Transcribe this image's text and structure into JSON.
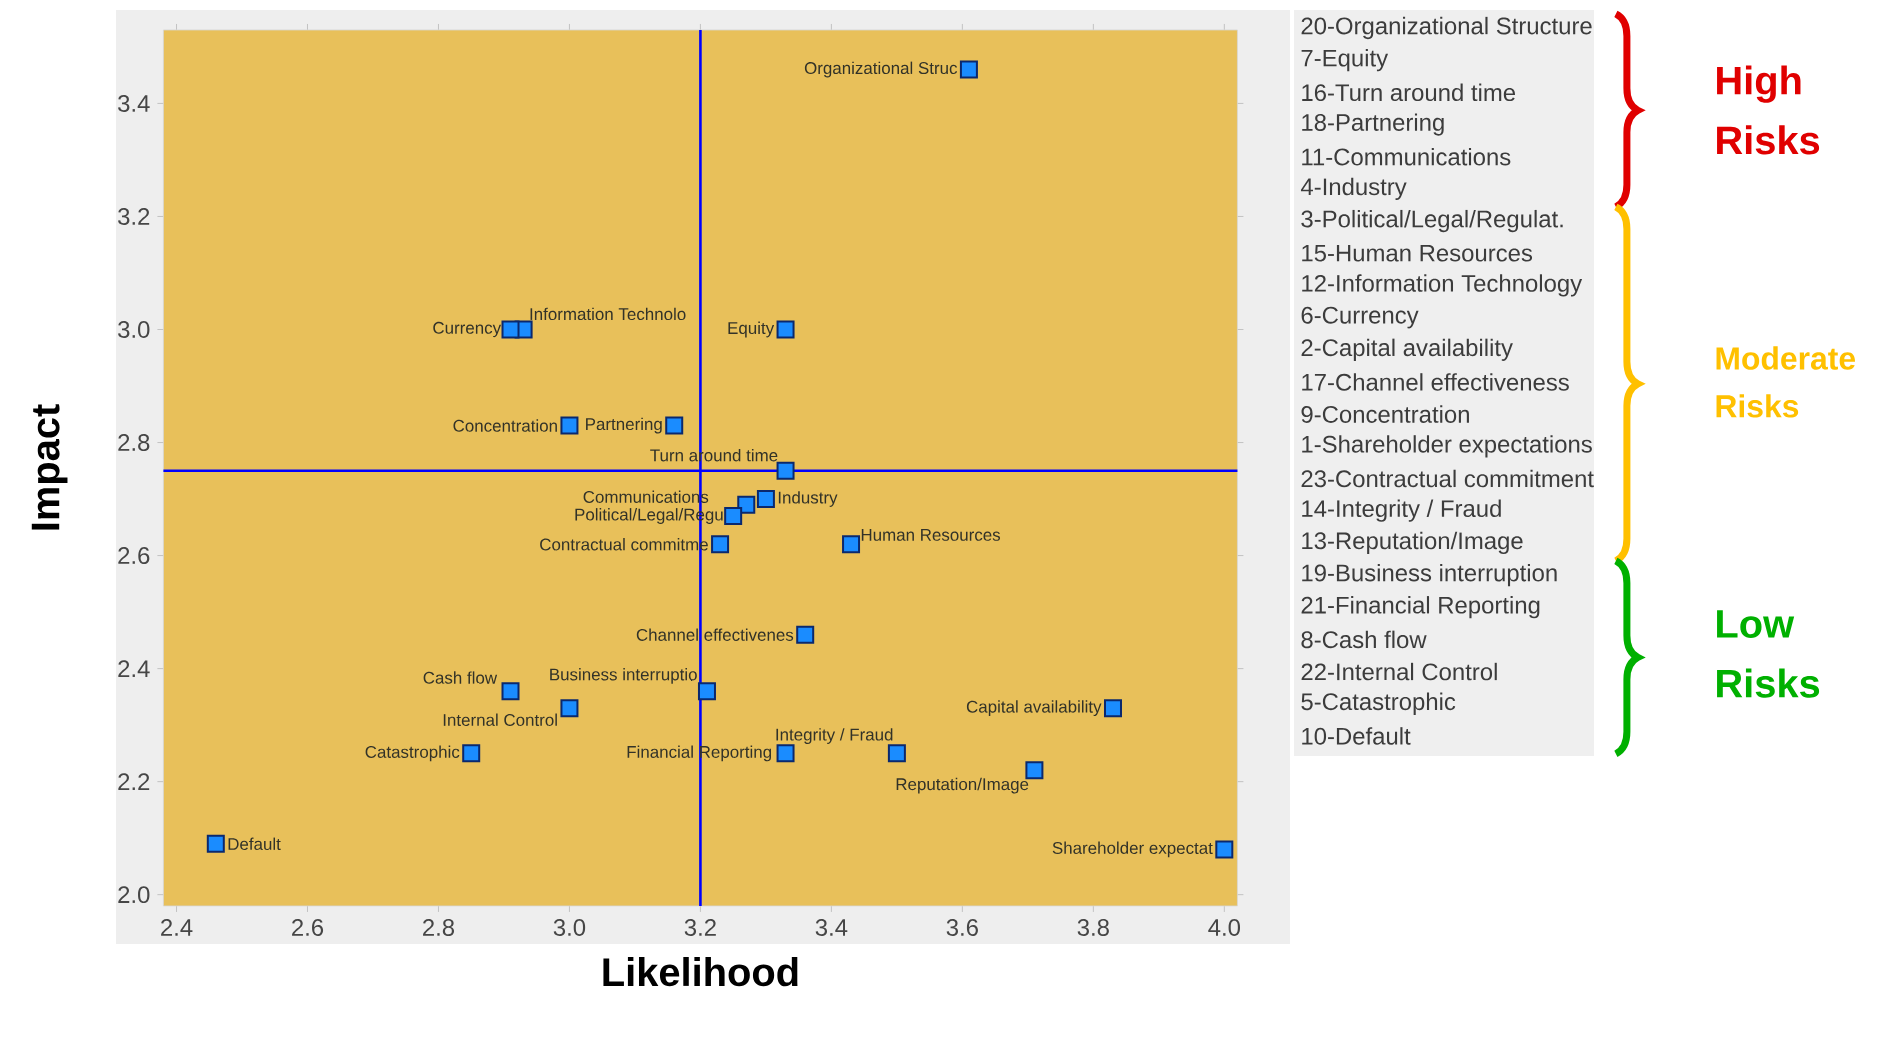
{
  "chart_data": {
    "type": "scatter",
    "xlabel": "Likelihood",
    "ylabel": "Impact",
    "color": "#1a8cff",
    "marker": "square",
    "x": [
      3.61,
      3.33,
      3.33,
      3.16,
      3.27,
      3.3,
      3.25,
      3.43,
      2.93,
      2.91,
      3.83,
      3.36,
      3.0,
      4.0,
      3.23,
      3.5,
      3.71,
      3.21,
      3.33,
      2.91,
      3.0,
      2.85,
      2.46
    ],
    "values": [
      3.46,
      3.0,
      2.75,
      2.83,
      2.69,
      2.7,
      2.67,
      2.62,
      3.0,
      3.0,
      2.33,
      2.46,
      2.83,
      2.08,
      2.62,
      2.25,
      2.22,
      2.36,
      2.25,
      2.36,
      2.33,
      2.25,
      2.09
    ],
    "xlim": [
      2.38,
      4.02
    ],
    "ylim": [
      1.98,
      3.53
    ],
    "xticks": [
      2.4,
      2.6,
      2.8,
      {
        "value": 3,
        "label": "3.0"
      },
      3.2,
      3.4,
      3.6,
      3.8,
      {
        "value": 4,
        "label": "4.0"
      }
    ],
    "yticks": [
      {
        "value": 2,
        "label": "2.0"
      },
      2.2,
      2.4,
      2.6,
      2.8,
      {
        "value": 3,
        "label": "3.0"
      },
      3.2,
      3.4
    ],
    "ref_lines": [
      {
        "axis": "x",
        "value": 3.2,
        "color": "#0000ff"
      },
      {
        "axis": "y",
        "value": 2.75,
        "color": "#0000ff"
      }
    ],
    "annotations": [
      {
        "text": "Organizational Struc",
        "x": 3.61,
        "y": 3.46
      },
      {
        "text": "Equity",
        "x": 3.33,
        "y": 3.0
      },
      {
        "text": "Turn around time",
        "x": 3.33,
        "y": 2.75
      },
      {
        "text": "Partnering",
        "x": 3.16,
        "y": 2.83
      },
      {
        "text": "Communications",
        "x": 3.27,
        "y": 2.69
      },
      {
        "text": "Industry",
        "x": 3.3,
        "y": 2.7
      },
      {
        "text": "Political/Legal/Regu",
        "x": 3.25,
        "y": 2.67
      },
      {
        "text": "Human Resources",
        "x": 3.43,
        "y": 2.62
      },
      {
        "text": "Information Technolo",
        "x": 2.93,
        "y": 3.0
      },
      {
        "text": "Currency",
        "x": 2.91,
        "y": 3.0
      },
      {
        "text": "Capital availability",
        "x": 3.83,
        "y": 2.33
      },
      {
        "text": "Channel effectivenes",
        "x": 3.36,
        "y": 2.46
      },
      {
        "text": "Concentration",
        "x": 3.0,
        "y": 2.83
      },
      {
        "text": "Shareholder expectat",
        "x": 4.0,
        "y": 2.08
      },
      {
        "text": "Contractual commitme",
        "x": 3.23,
        "y": 2.62
      },
      {
        "text": "Integrity / Fraud",
        "x": 3.5,
        "y": 2.25
      },
      {
        "text": "Reputation/Image",
        "x": 3.71,
        "y": 2.22
      },
      {
        "text": "Business interruptio",
        "x": 3.21,
        "y": 2.36
      },
      {
        "text": "Financial Reporting",
        "x": 3.33,
        "y": 2.25
      },
      {
        "text": "Cash flow",
        "x": 2.91,
        "y": 2.36
      },
      {
        "text": "Internal Control",
        "x": 3.0,
        "y": 2.33
      },
      {
        "text": "Catastrophic",
        "x": 2.85,
        "y": 2.25
      },
      {
        "text": "Default",
        "x": 2.46,
        "y": 2.09
      },
      "20-Organizational Structure",
      "7-Equity",
      "16-Turn around time",
      "18-Partnering",
      "11-Communications",
      "4-Industry",
      "3-Political/Legal/Regulat.",
      "15-Human Resources",
      "12-Information Technology",
      "6-Currency",
      "2-Capital availability",
      "17-Channel effectiveness",
      "9-Concentration",
      "1-Shareholder expectations",
      "23-Contractual commitment",
      "14-Integrity / Fraud",
      "13-Reputation/Image",
      "19-Business interruption",
      "21-Financial Reporting",
      "8-Cash flow",
      "22-Internal Control",
      "5-Catastrophic",
      "10-Default",
      "High Risks",
      "Moderate Risks",
      "Low Risks"
    ]
  }
}
